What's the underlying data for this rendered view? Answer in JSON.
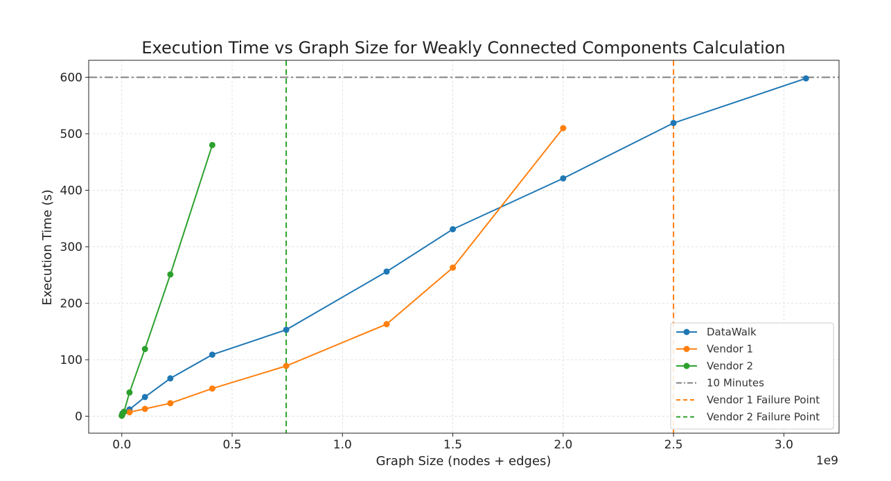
{
  "chart_data": {
    "type": "line",
    "title": "Execution Time vs Graph Size for Weakly Connected Components Calculation",
    "xlabel": "Graph Size (nodes + edges)",
    "ylabel": "Execution Time (s)",
    "x_offset_label": "1e9",
    "xlim": [
      -0.15,
      3.25
    ],
    "ylim": [
      -30,
      630
    ],
    "x_ticks": [
      0.0,
      0.5,
      1.0,
      1.5,
      2.0,
      2.5,
      3.0
    ],
    "x_tick_labels": [
      "0.0",
      "0.5",
      "1.0",
      "1.5",
      "2.0",
      "2.5",
      "3.0"
    ],
    "y_ticks": [
      0,
      100,
      200,
      300,
      400,
      500,
      600
    ],
    "y_tick_labels": [
      "0",
      "100",
      "200",
      "300",
      "400",
      "500",
      "600"
    ],
    "grid": true,
    "legend_position": "bottom-right",
    "series": [
      {
        "name": "DataWalk",
        "color": "#1f77b4",
        "style": "solid-marker",
        "x": [
          0.0,
          0.003,
          0.035,
          0.105,
          0.22,
          0.41,
          0.745,
          1.2,
          1.5,
          2.0,
          2.5,
          3.1
        ],
        "y": [
          1,
          5,
          12,
          34,
          67,
          109,
          153,
          256,
          331,
          421,
          519,
          598
        ]
      },
      {
        "name": "Vendor 1",
        "color": "#ff7f0e",
        "style": "solid-marker",
        "x": [
          0.0,
          0.003,
          0.035,
          0.105,
          0.22,
          0.41,
          0.745,
          1.2,
          1.5,
          2.0
        ],
        "y": [
          1,
          3,
          7,
          13,
          23,
          49,
          89,
          163,
          263,
          510
        ]
      },
      {
        "name": "Vendor 2",
        "color": "#2ca02c",
        "style": "solid-marker",
        "x": [
          0.0,
          0.003,
          0.01,
          0.035,
          0.105,
          0.22,
          0.41
        ],
        "y": [
          1,
          4,
          8,
          42,
          119,
          251,
          480
        ]
      }
    ],
    "reference_lines": [
      {
        "name": "10 Minutes",
        "orientation": "horizontal",
        "value": 600,
        "color": "#808080",
        "style": "dashdot"
      },
      {
        "name": "Vendor 1 Failure Point",
        "orientation": "vertical",
        "value": 2.5,
        "color": "#ff7f0e",
        "style": "dashed"
      },
      {
        "name": "Vendor 2 Failure Point",
        "orientation": "vertical",
        "value": 0.745,
        "color": "#2ca02c",
        "style": "dashed"
      }
    ]
  }
}
